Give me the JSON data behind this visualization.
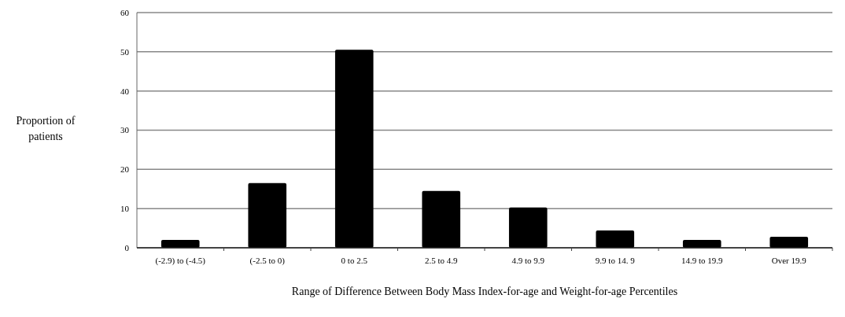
{
  "chart_data": {
    "type": "bar",
    "categories": [
      "(-2.9) to (-4.5)",
      "(-2.5 to 0)",
      "0 to 2.5",
      "2.5 to 4.9",
      "4.9 to 9.9",
      "9.9 to 14. 9",
      "14.9 to 19.9",
      "Over 19.9"
    ],
    "values": [
      2,
      16.5,
      50.5,
      14.5,
      10.3,
      4.4,
      2,
      2.8
    ],
    "color": "#000000",
    "xlabel": "Range of  Difference Between Body Mass Index-for-age  and Weight-for-age Percentiles",
    "ylabel": "Proportion of patients",
    "ylim": [
      0,
      60
    ],
    "yticks": [
      0,
      10,
      20,
      30,
      40,
      50,
      60
    ],
    "grid": "y"
  }
}
